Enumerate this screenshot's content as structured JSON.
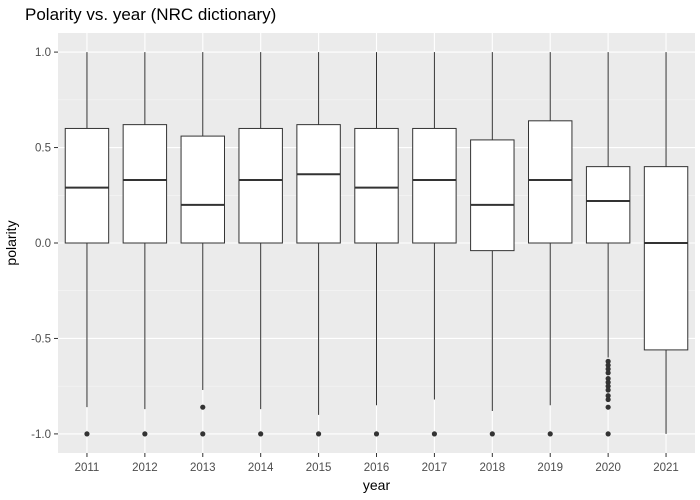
{
  "chart_data": {
    "type": "boxplot",
    "title": "Polarity vs. year (NRC dictionary)",
    "xlabel": "year",
    "ylabel": "polarity",
    "ylim": [
      -1.1,
      1.1
    ],
    "yticks": [
      -1.0,
      -0.5,
      0.0,
      0.5,
      1.0
    ],
    "ytick_labels": [
      "-1.0",
      "-0.5",
      "0.0",
      "0.5",
      "1.0"
    ],
    "grid": true,
    "colors": {
      "panel": "#ebebeb",
      "grid_major": "#ffffff",
      "box_fill": "#ffffff",
      "line": "#333333"
    },
    "categories": [
      "2011",
      "2012",
      "2013",
      "2014",
      "2015",
      "2016",
      "2017",
      "2018",
      "2019",
      "2020",
      "2021"
    ],
    "boxes": [
      {
        "category": "2011",
        "q1": 0.0,
        "median": 0.29,
        "q3": 0.6,
        "whisker_low": -0.86,
        "whisker_high": 1.0,
        "outliers": [
          -1.0
        ]
      },
      {
        "category": "2012",
        "q1": 0.0,
        "median": 0.33,
        "q3": 0.62,
        "whisker_low": -0.87,
        "whisker_high": 1.0,
        "outliers": [
          -1.0
        ]
      },
      {
        "category": "2013",
        "q1": 0.0,
        "median": 0.2,
        "q3": 0.56,
        "whisker_low": -0.77,
        "whisker_high": 1.0,
        "outliers": [
          -0.86,
          -1.0
        ]
      },
      {
        "category": "2014",
        "q1": 0.0,
        "median": 0.33,
        "q3": 0.6,
        "whisker_low": -0.87,
        "whisker_high": 1.0,
        "outliers": [
          -1.0
        ]
      },
      {
        "category": "2015",
        "q1": 0.0,
        "median": 0.36,
        "q3": 0.62,
        "whisker_low": -0.9,
        "whisker_high": 1.0,
        "outliers": [
          -1.0
        ]
      },
      {
        "category": "2016",
        "q1": 0.0,
        "median": 0.29,
        "q3": 0.6,
        "whisker_low": -0.85,
        "whisker_high": 1.0,
        "outliers": [
          -1.0
        ]
      },
      {
        "category": "2017",
        "q1": 0.0,
        "median": 0.33,
        "q3": 0.6,
        "whisker_low": -0.82,
        "whisker_high": 1.0,
        "outliers": [
          -1.0
        ]
      },
      {
        "category": "2018",
        "q1": -0.04,
        "median": 0.2,
        "q3": 0.54,
        "whisker_low": -0.88,
        "whisker_high": 1.0,
        "outliers": [
          -1.0
        ]
      },
      {
        "category": "2019",
        "q1": 0.0,
        "median": 0.33,
        "q3": 0.64,
        "whisker_low": -0.85,
        "whisker_high": 1.0,
        "outliers": [
          -1.0
        ]
      },
      {
        "category": "2020",
        "q1": 0.0,
        "median": 0.22,
        "q3": 0.4,
        "whisker_low": -0.6,
        "whisker_high": 1.0,
        "outliers": [
          -0.62,
          -0.64,
          -0.66,
          -0.68,
          -0.71,
          -0.73,
          -0.75,
          -0.77,
          -0.8,
          -0.82,
          -0.86,
          -1.0
        ]
      },
      {
        "category": "2021",
        "q1": -0.56,
        "median": 0.0,
        "q3": 0.4,
        "whisker_low": -1.0,
        "whisker_high": 1.0,
        "outliers": []
      }
    ]
  }
}
